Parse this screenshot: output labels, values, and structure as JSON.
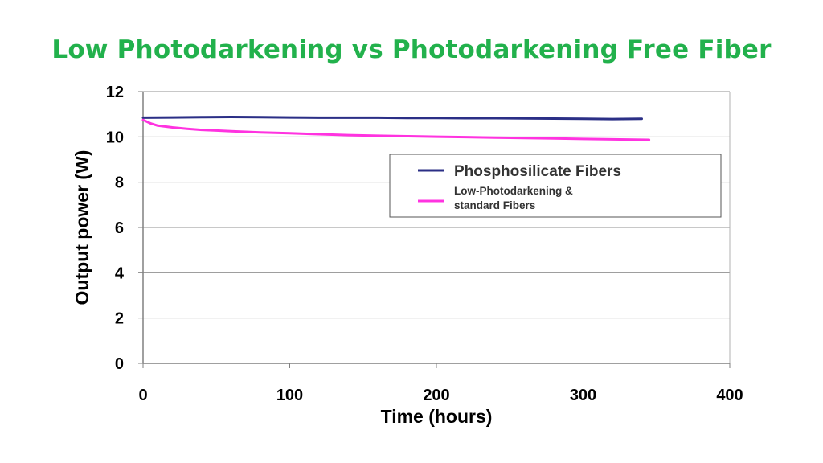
{
  "title": "Low Photodarkening vs Photodarkening Free Fiber",
  "colors": {
    "title": "#22b14c",
    "series_blue": "#2b2f86",
    "series_pink": "#ff33e0",
    "grid": "#909090"
  },
  "chart_data": {
    "type": "line",
    "xlabel": "Time (hours)",
    "ylabel": "Output power (W)",
    "xlim": [
      0,
      400
    ],
    "ylim": [
      0,
      12
    ],
    "xticks": [
      0,
      100,
      200,
      300,
      400
    ],
    "yticks": [
      0,
      2,
      4,
      6,
      8,
      10,
      12
    ],
    "grid": "horizontal",
    "legend_position": "right",
    "series": [
      {
        "name": "Phosphosilicate Fibers",
        "color": "#2b2f86",
        "x": [
          0,
          20,
          40,
          60,
          80,
          100,
          120,
          140,
          160,
          180,
          200,
          220,
          240,
          260,
          280,
          300,
          320,
          340
        ],
        "y": [
          10.85,
          10.86,
          10.87,
          10.88,
          10.87,
          10.86,
          10.85,
          10.85,
          10.85,
          10.84,
          10.84,
          10.83,
          10.83,
          10.82,
          10.81,
          10.8,
          10.79,
          10.8
        ]
      },
      {
        "name": "Low-Photodarkening & standard Fibers",
        "name_lines": [
          "Low-Photodarkening &",
          "standard Fibers"
        ],
        "color": "#ff33e0",
        "x": [
          0,
          5,
          10,
          20,
          30,
          40,
          50,
          60,
          80,
          100,
          120,
          140,
          160,
          180,
          200,
          220,
          240,
          260,
          280,
          300,
          320,
          345
        ],
        "y": [
          10.75,
          10.6,
          10.5,
          10.42,
          10.36,
          10.31,
          10.28,
          10.25,
          10.2,
          10.16,
          10.12,
          10.08,
          10.05,
          10.03,
          10.01,
          9.99,
          9.97,
          9.95,
          9.93,
          9.91,
          9.89,
          9.87
        ]
      }
    ]
  }
}
